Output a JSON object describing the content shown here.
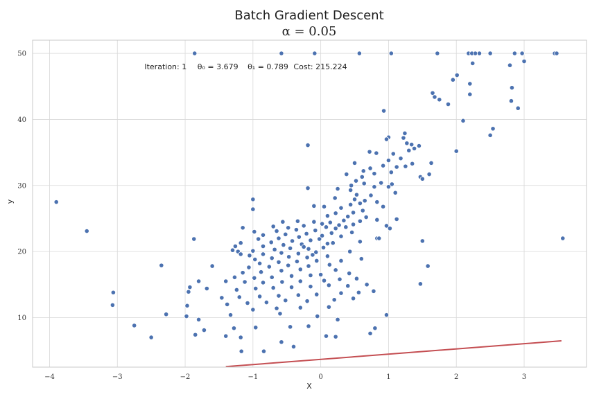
{
  "chart_data": {
    "type": "scatter",
    "title": "Batch Gradient Descent",
    "subtitle": "α = 0.05",
    "xlabel": "X",
    "ylabel": "y",
    "xlim": [
      -4.25,
      3.92
    ],
    "ylim": [
      2.5,
      52.0
    ],
    "xticks": [
      -4,
      -3,
      -2,
      -1,
      0,
      1,
      2,
      3
    ],
    "xtick_labels": [
      "−4",
      "−3",
      "−2",
      "−1",
      "0",
      "1",
      "2",
      "3"
    ],
    "yticks": [
      10,
      20,
      30,
      40,
      50
    ],
    "ytick_labels": [
      "10",
      "20",
      "30",
      "40",
      "50"
    ],
    "grid": true,
    "annotation": {
      "iteration_text": "Iteration: 1",
      "theta0_text": "θ₀ = 3.679",
      "theta1_text": "θ₁ = 0.789",
      "cost_text": "Cost: 215.224",
      "x": -2.6,
      "y": 47.6
    },
    "fit_line": {
      "theta0": 3.679,
      "theta1": 0.789,
      "x_start": -1.4,
      "x_end": 3.55,
      "color": "#c44e52"
    },
    "point_color": "#4c72b0",
    "points": [
      [
        -1.86,
        50.0
      ],
      [
        -0.58,
        50.0
      ],
      [
        -0.09,
        50.0
      ],
      [
        0.57,
        50.0
      ],
      [
        1.04,
        50.0
      ],
      [
        1.72,
        50.0
      ],
      [
        2.18,
        50.0
      ],
      [
        2.23,
        50.0
      ],
      [
        2.28,
        50.0
      ],
      [
        2.34,
        50.0
      ],
      [
        2.5,
        50.0
      ],
      [
        2.86,
        50.0
      ],
      [
        2.97,
        50.0
      ],
      [
        3.45,
        50.0
      ],
      [
        3.48,
        50.0
      ],
      [
        2.24,
        48.5
      ],
      [
        3.0,
        48.8
      ],
      [
        2.79,
        48.2
      ],
      [
        2.01,
        46.7
      ],
      [
        1.95,
        46.0
      ],
      [
        2.2,
        45.4
      ],
      [
        2.82,
        44.8
      ],
      [
        1.65,
        44.0
      ],
      [
        2.2,
        43.8
      ],
      [
        1.68,
        43.4
      ],
      [
        1.75,
        43.0
      ],
      [
        2.81,
        42.8
      ],
      [
        1.88,
        42.3
      ],
      [
        2.91,
        41.7
      ],
      [
        0.93,
        41.3
      ],
      [
        2.1,
        39.8
      ],
      [
        2.54,
        38.6
      ],
      [
        2.5,
        37.6
      ],
      [
        1.24,
        37.9
      ],
      [
        1.22,
        37.2
      ],
      [
        1.0,
        37.3
      ],
      [
        0.97,
        37.0
      ],
      [
        1.27,
        36.4
      ],
      [
        1.34,
        36.2
      ],
      [
        1.45,
        36.0
      ],
      [
        1.3,
        35.3
      ],
      [
        1.38,
        35.6
      ],
      [
        -0.19,
        36.1
      ],
      [
        2.0,
        35.2
      ],
      [
        0.72,
        35.1
      ],
      [
        0.82,
        34.9
      ],
      [
        1.07,
        34.8
      ],
      [
        1.0,
        33.8
      ],
      [
        1.18,
        34.1
      ],
      [
        1.35,
        33.3
      ],
      [
        1.63,
        33.4
      ],
      [
        0.5,
        33.4
      ],
      [
        1.25,
        32.9
      ],
      [
        1.12,
        32.8
      ],
      [
        0.92,
        33.0
      ],
      [
        0.73,
        32.6
      ],
      [
        1.04,
        32.0
      ],
      [
        1.6,
        31.7
      ],
      [
        1.47,
        31.3
      ],
      [
        0.38,
        31.7
      ],
      [
        0.63,
        32.2
      ],
      [
        0.79,
        31.8
      ],
      [
        0.61,
        31.3
      ],
      [
        0.52,
        30.7
      ],
      [
        0.64,
        30.3
      ],
      [
        0.89,
        30.4
      ],
      [
        1.05,
        30.2
      ],
      [
        1.5,
        31.0
      ],
      [
        1.0,
        29.8
      ],
      [
        0.25,
        29.5
      ],
      [
        0.45,
        30.0
      ],
      [
        0.79,
        29.8
      ],
      [
        -0.19,
        29.6
      ],
      [
        0.44,
        29.3
      ],
      [
        1.1,
        28.9
      ],
      [
        0.53,
        28.6
      ],
      [
        0.74,
        28.5
      ],
      [
        0.21,
        28.1
      ],
      [
        0.5,
        27.9
      ],
      [
        0.65,
        27.7
      ],
      [
        -1.0,
        27.9
      ],
      [
        0.58,
        27.3
      ],
      [
        0.83,
        27.5
      ],
      [
        0.44,
        27.1
      ],
      [
        0.92,
        26.8
      ],
      [
        -1.0,
        26.4
      ],
      [
        0.05,
        26.8
      ],
      [
        -0.1,
        26.9
      ],
      [
        0.3,
        26.6
      ],
      [
        0.62,
        26.2
      ],
      [
        0.48,
        25.9
      ],
      [
        0.22,
        25.8
      ],
      [
        0.4,
        25.3
      ],
      [
        0.1,
        25.4
      ],
      [
        0.67,
        25.2
      ],
      [
        0.83,
        24.8
      ],
      [
        1.12,
        24.9
      ],
      [
        0.58,
        24.6
      ],
      [
        0.34,
        24.7
      ],
      [
        0.14,
        24.4
      ],
      [
        -0.1,
        24.5
      ],
      [
        -0.34,
        24.6
      ],
      [
        -0.56,
        24.5
      ],
      [
        0.02,
        24.2
      ],
      [
        0.27,
        24.0
      ],
      [
        0.48,
        24.1
      ],
      [
        0.97,
        23.9
      ],
      [
        1.02,
        23.5
      ],
      [
        -0.7,
        23.8
      ],
      [
        -0.48,
        23.6
      ],
      [
        -0.25,
        23.9
      ],
      [
        0.08,
        23.7
      ],
      [
        0.22,
        23.5
      ],
      [
        0.37,
        23.7
      ],
      [
        -0.08,
        23.2
      ],
      [
        -0.36,
        23.3
      ],
      [
        -0.65,
        23.1
      ],
      [
        -0.98,
        23.0
      ],
      [
        0.46,
        22.9
      ],
      [
        0.16,
        22.8
      ],
      [
        -0.21,
        22.7
      ],
      [
        -0.52,
        22.6
      ],
      [
        -0.85,
        22.5
      ],
      [
        0.3,
        22.3
      ],
      [
        0.02,
        22.4
      ],
      [
        -0.32,
        22.2
      ],
      [
        -0.62,
        22.0
      ],
      [
        -0.92,
        21.9
      ],
      [
        0.83,
        22.0
      ],
      [
        0.58,
        21.5
      ],
      [
        -0.15,
        21.7
      ],
      [
        -0.42,
        21.6
      ],
      [
        -0.73,
        21.4
      ],
      [
        -1.18,
        21.3
      ],
      [
        -1.87,
        21.9
      ],
      [
        0.1,
        21.2
      ],
      [
        -0.28,
        21.1
      ],
      [
        -0.55,
        21.0
      ],
      [
        -0.85,
        20.8
      ],
      [
        -1.26,
        20.8
      ],
      [
        0.04,
        20.6
      ],
      [
        -0.18,
        20.4
      ],
      [
        -0.45,
        20.5
      ],
      [
        -0.68,
        20.3
      ],
      [
        -1.0,
        20.1
      ],
      [
        -1.22,
        20.0
      ],
      [
        -1.3,
        20.2
      ],
      [
        -0.07,
        19.9
      ],
      [
        -0.33,
        19.7
      ],
      [
        -0.58,
        19.8
      ],
      [
        -0.85,
        19.6
      ],
      [
        -1.05,
        19.4
      ],
      [
        -1.18,
        19.6
      ],
      [
        0.1,
        19.3
      ],
      [
        -0.2,
        19.1
      ],
      [
        -0.47,
        19.2
      ],
      [
        -0.72,
        19.0
      ],
      [
        -0.97,
        18.8
      ],
      [
        -0.06,
        18.6
      ],
      [
        -0.35,
        18.5
      ],
      [
        -0.62,
        18.4
      ],
      [
        -0.9,
        18.2
      ],
      [
        0.13,
        18.0
      ],
      [
        -0.18,
        17.8
      ],
      [
        -0.48,
        17.9
      ],
      [
        -0.76,
        17.7
      ],
      [
        -1.06,
        17.6
      ],
      [
        1.58,
        17.8
      ],
      [
        -2.35,
        17.9
      ],
      [
        -1.6,
        17.8
      ],
      [
        0.22,
        17.2
      ],
      [
        -0.3,
        17.3
      ],
      [
        -0.58,
        17.1
      ],
      [
        -0.88,
        16.9
      ],
      [
        -1.15,
        16.8
      ],
      [
        0.42,
        16.7
      ],
      [
        0.0,
        16.5
      ],
      [
        -0.15,
        16.4
      ],
      [
        -0.43,
        16.3
      ],
      [
        -0.72,
        16.1
      ],
      [
        -0.98,
        16.0
      ],
      [
        -1.27,
        16.1
      ],
      [
        0.53,
        15.9
      ],
      [
        0.28,
        15.8
      ],
      [
        0.05,
        15.6
      ],
      [
        -0.3,
        15.5
      ],
      [
        -0.57,
        15.4
      ],
      [
        -0.85,
        15.3
      ],
      [
        -1.12,
        15.4
      ],
      [
        -1.4,
        15.5
      ],
      [
        -1.8,
        15.5
      ],
      [
        -1.93,
        14.6
      ],
      [
        1.47,
        15.1
      ],
      [
        0.68,
        15.0
      ],
      [
        0.4,
        14.8
      ],
      [
        0.12,
        14.9
      ],
      [
        -0.15,
        14.7
      ],
      [
        -0.43,
        14.6
      ],
      [
        -0.7,
        14.5
      ],
      [
        -0.96,
        14.4
      ],
      [
        -1.24,
        14.2
      ],
      [
        -1.68,
        14.4
      ],
      [
        -1.95,
        13.9
      ],
      [
        -3.06,
        13.8
      ],
      [
        0.78,
        14.0
      ],
      [
        0.56,
        13.8
      ],
      [
        0.3,
        13.7
      ],
      [
        -0.06,
        13.5
      ],
      [
        -0.33,
        13.4
      ],
      [
        -0.62,
        13.3
      ],
      [
        -0.9,
        13.2
      ],
      [
        -1.2,
        13.1
      ],
      [
        -1.46,
        13.0
      ],
      [
        0.48,
        12.9
      ],
      [
        0.2,
        12.7
      ],
      [
        -0.2,
        12.5
      ],
      [
        -0.52,
        12.6
      ],
      [
        -0.8,
        12.3
      ],
      [
        -1.08,
        12.2
      ],
      [
        -1.38,
        12.0
      ],
      [
        -1.97,
        11.8
      ],
      [
        -3.07,
        11.9
      ],
      [
        0.12,
        11.6
      ],
      [
        -0.3,
        11.5
      ],
      [
        -0.65,
        11.4
      ],
      [
        -1.0,
        11.2
      ],
      [
        -2.28,
        10.5
      ],
      [
        -1.33,
        10.4
      ],
      [
        -0.6,
        10.6
      ],
      [
        -0.05,
        10.2
      ],
      [
        0.97,
        10.4
      ],
      [
        -1.98,
        10.2
      ],
      [
        0.25,
        9.7
      ],
      [
        -1.8,
        9.7
      ],
      [
        -2.75,
        8.8
      ],
      [
        -1.72,
        8.1
      ],
      [
        -1.28,
        8.4
      ],
      [
        -0.96,
        8.5
      ],
      [
        -0.45,
        8.6
      ],
      [
        -0.18,
        8.7
      ],
      [
        0.8,
        8.4
      ],
      [
        0.73,
        7.6
      ],
      [
        -1.85,
        7.4
      ],
      [
        -1.4,
        7.2
      ],
      [
        -1.18,
        7.0
      ],
      [
        0.08,
        7.2
      ],
      [
        0.22,
        7.1
      ],
      [
        -0.58,
        6.3
      ],
      [
        -2.5,
        7.0
      ],
      [
        -0.4,
        5.6
      ],
      [
        -1.17,
        4.9
      ],
      [
        -0.84,
        4.9
      ],
      [
        -3.9,
        27.5
      ],
      [
        -3.45,
        23.1
      ],
      [
        3.57,
        22.0
      ],
      [
        1.5,
        21.6
      ],
      [
        0.86,
        22.0
      ],
      [
        -0.02,
        21.9
      ],
      [
        0.18,
        21.3
      ],
      [
        -0.12,
        19.5
      ],
      [
        -0.25,
        20.7
      ],
      [
        0.3,
        18.6
      ],
      [
        0.6,
        18.9
      ],
      [
        0.43,
        20.0
      ],
      [
        -1.15,
        23.6
      ]
    ]
  }
}
